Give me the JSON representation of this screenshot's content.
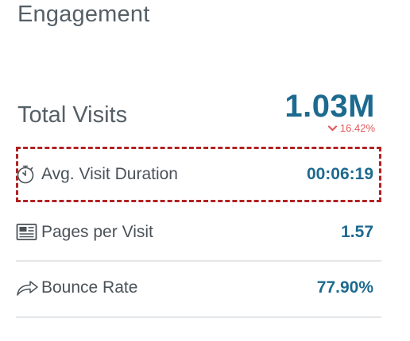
{
  "section": {
    "title": "Engagement"
  },
  "total_visits": {
    "label": "Total Visits",
    "value": "1.03M",
    "change": "16.42%",
    "change_direction": "down",
    "change_icon": "chevron-down-icon",
    "change_color": "#e05a5a"
  },
  "metrics": [
    {
      "icon": "stopwatch-icon",
      "label": "Avg. Visit Duration",
      "value": "00:06:19",
      "highlighted": true
    },
    {
      "icon": "newspaper-icon",
      "label": "Pages per Visit",
      "value": "1.57"
    },
    {
      "icon": "share-arrow-icon",
      "label": "Bounce Rate",
      "value": "77.90%"
    }
  ],
  "colors": {
    "value_accent": "#1d6a8f",
    "text": "#555f66",
    "highlight_border": "#b22222",
    "divider": "#e4e6e8"
  }
}
